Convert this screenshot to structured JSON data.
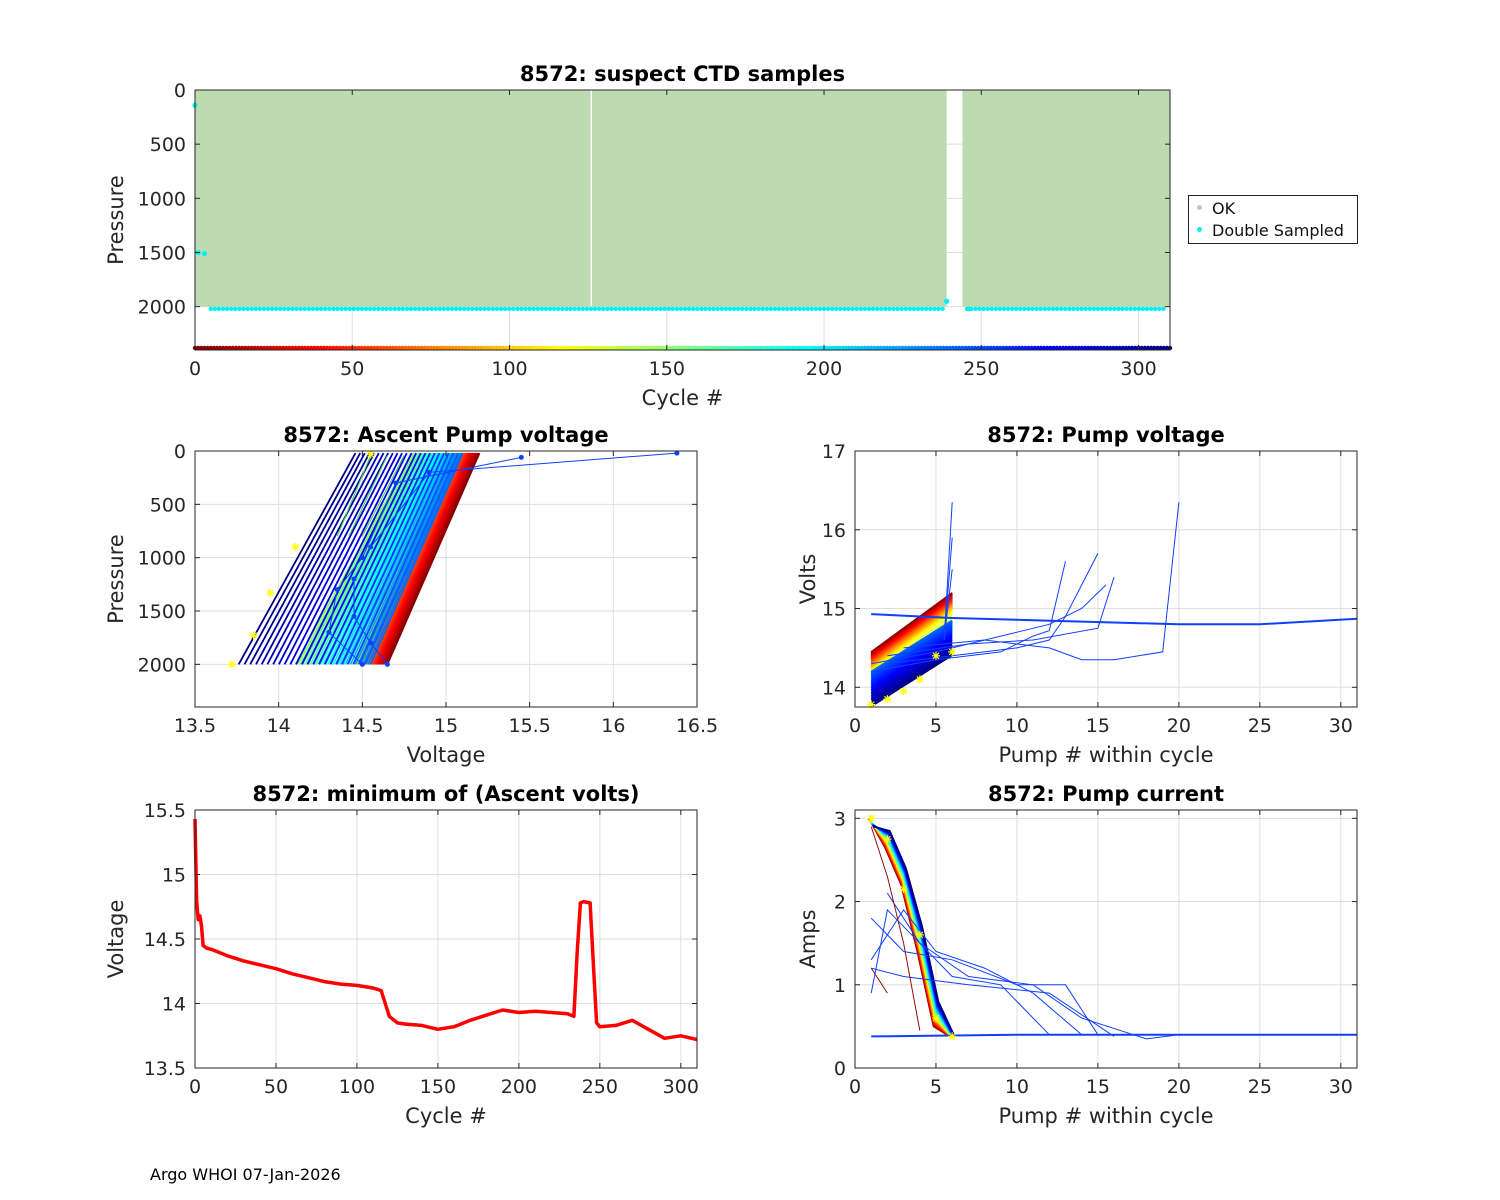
{
  "footer": "Argo WHOI 07-Jan-2026",
  "colors": {
    "ok": "#c4c4c4",
    "double_sampled": "#00f0f0",
    "ctd_fill": "#bcdbb1",
    "min_volts_line": "#ff0000",
    "marker_star": "#ffff00"
  },
  "legend": {
    "items": [
      {
        "label": "OK",
        "color": "#c4c4c4"
      },
      {
        "label": "Double Sampled",
        "color": "#00f0f0"
      }
    ]
  },
  "chart_data": [
    {
      "id": "ctd",
      "type": "scatter",
      "title": "8572: suspect CTD samples",
      "xlabel": "Cycle #",
      "ylabel": "Pressure",
      "xlim": [
        0,
        310
      ],
      "ylim": [
        2400,
        0
      ],
      "xticks": [
        0,
        50,
        100,
        150,
        200,
        250,
        300
      ],
      "yticks": [
        0,
        500,
        1000,
        1500,
        2000
      ],
      "xticklabels": [
        "0",
        "50",
        "100",
        "150",
        "200",
        "250",
        "300"
      ],
      "yticklabels": [
        "0",
        "500",
        "1000",
        "1500",
        "2000"
      ],
      "profile_blocks": [
        {
          "x0": 0,
          "x1": 126,
          "p_min": 0,
          "p_max": 2000
        },
        {
          "x0": 126,
          "x1": 239,
          "p_min": 0,
          "p_max": 2000
        },
        {
          "x0": 244,
          "x1": 310,
          "p_min": 0,
          "p_max": 2000
        }
      ],
      "double_sampled": [
        {
          "cycle": 0,
          "pressure": 140
        },
        {
          "cycle": 1,
          "pressure": 1500
        },
        {
          "cycle": 3,
          "pressure": 1510
        },
        {
          "cycle": 239,
          "pressure": 1950
        },
        {
          "cycle": 246,
          "pressure": 2020
        }
      ],
      "double_sampled_depth": 2020,
      "cycle_color_axis_pressure": 2400
    },
    {
      "id": "ascent",
      "type": "line",
      "title": "8572: Ascent Pump voltage",
      "xlabel": "Voltage",
      "ylabel": "Pressure",
      "xlim": [
        13.5,
        16.5
      ],
      "ylim": [
        2400,
        0
      ],
      "xticks": [
        13.5,
        14,
        14.5,
        15,
        15.5,
        16,
        16.5
      ],
      "yticks": [
        0,
        500,
        1000,
        1500,
        2000
      ],
      "xticklabels": [
        "13.5",
        "14",
        "14.5",
        "15",
        "15.5",
        "16",
        "16.5"
      ],
      "yticklabels": [
        "0",
        "500",
        "1000",
        "1500",
        "2000"
      ],
      "bottom_voltage_by_cycle": [
        [
          0,
          14.65
        ],
        [
          120,
          14.45
        ],
        [
          150,
          14.1
        ],
        [
          240,
          14.55
        ],
        [
          310,
          13.75
        ]
      ],
      "top_voltage_by_cycle": [
        [
          0,
          15.2
        ],
        [
          120,
          15.0
        ],
        [
          150,
          14.8
        ],
        [
          240,
          15.1
        ],
        [
          310,
          14.45
        ]
      ],
      "min_cycle_bottom": [
        [
          2000,
          13.72
        ],
        [
          1730,
          13.85
        ],
        [
          1330,
          13.95
        ],
        [
          900,
          14.1
        ]
      ],
      "outliers": [
        [
          14.6,
          2000
        ],
        [
          14.5,
          1700
        ],
        [
          14.4,
          1000
        ],
        [
          16.38,
          20
        ],
        [
          15.45,
          120
        ]
      ]
    },
    {
      "id": "pump_v",
      "type": "line",
      "title": "8572: Pump voltage",
      "xlabel": "Pump # within cycle",
      "ylabel": "Volts",
      "xlim": [
        0,
        31
      ],
      "ylim": [
        13.75,
        17
      ],
      "xticks": [
        0,
        5,
        10,
        15,
        20,
        25,
        30
      ],
      "yticks": [
        14,
        15,
        16,
        17
      ],
      "xticklabels": [
        "0",
        "5",
        "10",
        "15",
        "20",
        "25",
        "30"
      ],
      "yticklabels": [
        "14",
        "15",
        "16",
        "17"
      ],
      "start_volts_by_cycle": [
        [
          0,
          14.45
        ],
        [
          120,
          14.2
        ],
        [
          150,
          13.9
        ],
        [
          240,
          14.2
        ],
        [
          310,
          13.75
        ]
      ],
      "end_volts_by_cycle": [
        [
          0,
          15.2
        ],
        [
          120,
          14.95
        ],
        [
          150,
          14.6
        ],
        [
          240,
          14.85
        ],
        [
          310,
          14.4
        ]
      ],
      "flat_series": [
        [
          1,
          14.93
        ],
        [
          6,
          14.88
        ],
        [
          20,
          14.8
        ],
        [
          25,
          14.8
        ],
        [
          31,
          14.87
        ]
      ],
      "long_cycles": [
        [
          [
            1,
            14.2
          ],
          [
            5,
            14.35
          ],
          [
            9,
            14.45
          ],
          [
            11,
            14.65
          ],
          [
            12,
            14.72
          ],
          [
            13,
            15.6
          ]
        ],
        [
          [
            2,
            14.3
          ],
          [
            6,
            14.4
          ],
          [
            10,
            14.5
          ],
          [
            12,
            14.6
          ],
          [
            13,
            14.9
          ],
          [
            15,
            15.7
          ]
        ],
        [
          [
            1,
            14.3
          ],
          [
            5,
            14.45
          ],
          [
            10,
            14.7
          ],
          [
            12,
            14.8
          ],
          [
            14,
            15.0
          ],
          [
            15.5,
            15.3
          ]
        ],
        [
          [
            3,
            14.5
          ],
          [
            8,
            14.6
          ],
          [
            12,
            14.5
          ],
          [
            14,
            14.35
          ],
          [
            16,
            14.35
          ],
          [
            19,
            14.45
          ],
          [
            20,
            16.35
          ]
        ],
        [
          [
            2,
            14.4
          ],
          [
            7,
            14.55
          ],
          [
            11,
            14.6
          ],
          [
            15,
            14.75
          ],
          [
            16,
            15.4
          ]
        ]
      ],
      "spikes": [
        [
          6,
          16.35
        ],
        [
          6,
          15.9
        ],
        [
          6,
          15.5
        ]
      ]
    },
    {
      "id": "min_volts",
      "type": "line",
      "title": "8572: minimum of (Ascent volts)",
      "xlabel": "Cycle #",
      "ylabel": "Voltage",
      "xlim": [
        0,
        310
      ],
      "ylim": [
        13.5,
        15.5
      ],
      "xticks": [
        0,
        50,
        100,
        150,
        200,
        250,
        300
      ],
      "yticks": [
        13.5,
        14,
        14.5,
        15,
        15.5
      ],
      "xticklabels": [
        "0",
        "50",
        "100",
        "150",
        "200",
        "250",
        "300"
      ],
      "yticklabels": [
        "13.5",
        "14",
        "14.5",
        "15",
        "15.5"
      ],
      "x": [
        0,
        1,
        2,
        3,
        4,
        5,
        6,
        7,
        10,
        20,
        30,
        40,
        50,
        60,
        70,
        80,
        90,
        100,
        110,
        115,
        120,
        125,
        130,
        140,
        150,
        160,
        170,
        180,
        190,
        200,
        210,
        220,
        230,
        234,
        236,
        238,
        240,
        244,
        246,
        248,
        250,
        260,
        270,
        280,
        290,
        300,
        310
      ],
      "y": [
        15.43,
        14.8,
        14.65,
        14.68,
        14.6,
        14.45,
        14.44,
        14.43,
        14.42,
        14.37,
        14.33,
        14.3,
        14.27,
        14.23,
        14.2,
        14.17,
        14.15,
        14.14,
        14.12,
        14.1,
        13.9,
        13.85,
        13.84,
        13.83,
        13.8,
        13.82,
        13.87,
        13.91,
        13.95,
        13.93,
        13.94,
        13.93,
        13.92,
        13.9,
        14.4,
        14.78,
        14.79,
        14.78,
        14.3,
        13.85,
        13.82,
        13.83,
        13.87,
        13.8,
        13.73,
        13.75,
        13.72
      ]
    },
    {
      "id": "pump_i",
      "type": "line",
      "title": "8572: Pump current",
      "xlabel": "Pump # within cycle",
      "ylabel": "Amps",
      "xlim": [
        0,
        31
      ],
      "ylim": [
        0,
        3.1
      ],
      "xticks": [
        0,
        5,
        10,
        15,
        20,
        25,
        30
      ],
      "yticks": [
        0,
        1,
        2,
        3
      ],
      "xticklabels": [
        "0",
        "5",
        "10",
        "15",
        "20",
        "25",
        "30"
      ],
      "yticklabels": [
        "0",
        "1",
        "2",
        "3"
      ],
      "flat_series": [
        [
          1,
          0.38
        ],
        [
          6,
          0.39
        ],
        [
          10,
          0.4
        ],
        [
          20,
          0.4
        ],
        [
          31,
          0.4
        ]
      ],
      "long_cycles": [
        [
          [
            1,
            0.9
          ],
          [
            2,
            1.9
          ],
          [
            4,
            1.5
          ],
          [
            6,
            1.1
          ],
          [
            9,
            1.0
          ],
          [
            12,
            0.4
          ]
        ],
        [
          [
            1,
            1.3
          ],
          [
            3,
            1.9
          ],
          [
            5,
            1.4
          ],
          [
            8,
            1.2
          ],
          [
            11,
            0.9
          ],
          [
            14,
            0.4
          ]
        ],
        [
          [
            1,
            1.8
          ],
          [
            3,
            1.4
          ],
          [
            6,
            1.3
          ],
          [
            10,
            1.0
          ],
          [
            13,
            1.0
          ],
          [
            15,
            0.4
          ]
        ],
        [
          [
            2,
            2.1
          ],
          [
            4,
            1.5
          ],
          [
            7,
            1.1
          ],
          [
            11,
            1.0
          ],
          [
            14,
            0.6
          ],
          [
            18,
            0.35
          ],
          [
            20,
            0.4
          ]
        ],
        [
          [
            1,
            1.2
          ],
          [
            3,
            1.1
          ],
          [
            7,
            1.0
          ],
          [
            12,
            0.9
          ],
          [
            16,
            0.38
          ]
        ]
      ],
      "brown_cycles": [
        [
          [
            1,
            2.9
          ],
          [
            2,
            2.3
          ],
          [
            3,
            1.5
          ],
          [
            4,
            0.45
          ]
        ],
        [
          [
            1,
            1.2
          ],
          [
            2,
            0.9
          ]
        ]
      ],
      "star_points": [
        [
          1,
          3.0
        ],
        [
          2,
          2.75
        ],
        [
          3,
          2.15
        ],
        [
          4,
          1.6
        ],
        [
          5,
          0.6
        ],
        [
          6,
          0.38
        ]
      ]
    }
  ]
}
